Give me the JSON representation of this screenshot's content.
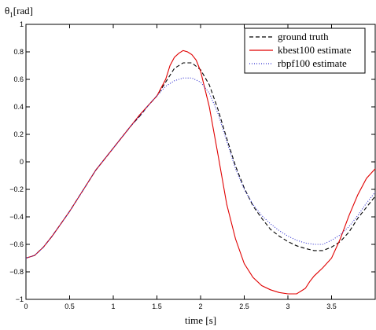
{
  "chart_data": {
    "type": "line",
    "title": "",
    "ylabel": "θ",
    "ylabel_sub": "1",
    "ylabel_unit": "[rad]",
    "xlabel": "time [s]",
    "xlim": [
      0,
      4.0
    ],
    "ylim": [
      -1,
      1
    ],
    "xticks": [
      0,
      0.5,
      1,
      1.5,
      2,
      2.5,
      3,
      3.5
    ],
    "xtick_labels": [
      "0",
      "0.5",
      "1",
      "1.5",
      "2",
      "2.5",
      "3",
      "3.5"
    ],
    "yticks": [
      -1,
      -0.8,
      -0.6,
      -0.4,
      -0.2,
      0,
      0.2,
      0.4,
      0.6,
      0.8,
      1
    ],
    "ytick_labels": [
      "−1",
      "−0.8",
      "−0.6",
      "−0.4",
      "−0.2",
      "0",
      "0.2",
      "0.4",
      "0.6",
      "0.8",
      "1"
    ],
    "grid": false,
    "legend_position": "top-right",
    "series": [
      {
        "name": "ground truth",
        "color": "#000000",
        "style": "dashed",
        "x": [
          0,
          0.1,
          0.2,
          0.3,
          0.4,
          0.5,
          0.6,
          0.7,
          0.8,
          0.9,
          1.0,
          1.1,
          1.2,
          1.3,
          1.4,
          1.5,
          1.6,
          1.7,
          1.8,
          1.9,
          2.0,
          2.1,
          2.2,
          2.3,
          2.4,
          2.5,
          2.6,
          2.7,
          2.8,
          2.9,
          3.0,
          3.1,
          3.2,
          3.3,
          3.4,
          3.5,
          3.6,
          3.7,
          3.8,
          3.9,
          4.0
        ],
        "y": [
          -0.7,
          -0.68,
          -0.62,
          -0.54,
          -0.45,
          -0.36,
          -0.26,
          -0.16,
          -0.06,
          0.02,
          0.1,
          0.18,
          0.26,
          0.33,
          0.41,
          0.48,
          0.58,
          0.68,
          0.72,
          0.72,
          0.67,
          0.56,
          0.38,
          0.17,
          -0.03,
          -0.19,
          -0.32,
          -0.41,
          -0.49,
          -0.54,
          -0.58,
          -0.61,
          -0.63,
          -0.645,
          -0.645,
          -0.62,
          -0.58,
          -0.51,
          -0.41,
          -0.33,
          -0.25
        ]
      },
      {
        "name": "kbest100 estimate",
        "color": "#e00000",
        "style": "solid",
        "x": [
          0,
          0.1,
          0.2,
          0.3,
          0.4,
          0.5,
          0.6,
          0.7,
          0.8,
          0.9,
          1.0,
          1.1,
          1.2,
          1.3,
          1.4,
          1.5,
          1.6,
          1.65,
          1.7,
          1.75,
          1.8,
          1.85,
          1.9,
          1.95,
          2.0,
          2.1,
          2.2,
          2.3,
          2.4,
          2.5,
          2.6,
          2.7,
          2.8,
          2.9,
          3.0,
          3.1,
          3.2,
          3.25,
          3.3,
          3.4,
          3.5,
          3.6,
          3.7,
          3.8,
          3.9,
          4.0
        ],
        "y": [
          -0.7,
          -0.68,
          -0.62,
          -0.54,
          -0.45,
          -0.36,
          -0.26,
          -0.16,
          -0.06,
          0.02,
          0.1,
          0.18,
          0.26,
          0.34,
          0.41,
          0.48,
          0.6,
          0.7,
          0.76,
          0.79,
          0.81,
          0.8,
          0.78,
          0.74,
          0.66,
          0.4,
          0.05,
          -0.31,
          -0.56,
          -0.74,
          -0.84,
          -0.9,
          -0.93,
          -0.95,
          -0.96,
          -0.96,
          -0.92,
          -0.87,
          -0.83,
          -0.77,
          -0.7,
          -0.56,
          -0.39,
          -0.24,
          -0.12,
          -0.05
        ]
      },
      {
        "name": "rbpf100 estimate",
        "color": "#3030d0",
        "style": "dotted",
        "x": [
          0,
          0.1,
          0.2,
          0.3,
          0.4,
          0.5,
          0.6,
          0.7,
          0.8,
          0.9,
          1.0,
          1.1,
          1.2,
          1.3,
          1.4,
          1.5,
          1.6,
          1.7,
          1.8,
          1.9,
          2.0,
          2.1,
          2.2,
          2.3,
          2.4,
          2.5,
          2.6,
          2.7,
          2.8,
          2.9,
          3.0,
          3.1,
          3.2,
          3.3,
          3.4,
          3.5,
          3.6,
          3.7,
          3.8,
          3.9,
          4.0
        ],
        "y": [
          -0.7,
          -0.68,
          -0.62,
          -0.54,
          -0.45,
          -0.36,
          -0.26,
          -0.16,
          -0.06,
          0.02,
          0.1,
          0.18,
          0.26,
          0.33,
          0.41,
          0.48,
          0.55,
          0.59,
          0.61,
          0.61,
          0.58,
          0.5,
          0.35,
          0.15,
          -0.05,
          -0.2,
          -0.31,
          -0.39,
          -0.45,
          -0.5,
          -0.54,
          -0.57,
          -0.59,
          -0.6,
          -0.6,
          -0.57,
          -0.53,
          -0.47,
          -0.39,
          -0.3,
          -0.22
        ]
      }
    ]
  }
}
